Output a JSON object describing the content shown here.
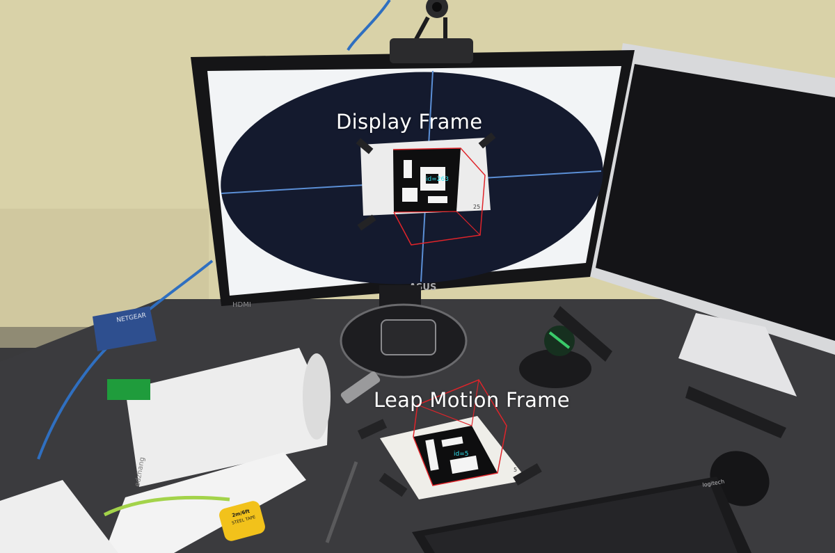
{
  "captions": {
    "display_frame": "Display Frame",
    "leap_motion_frame": "Leap Motion Frame"
  },
  "markers": {
    "display_marker_id": "id=263",
    "display_marker_number": "25",
    "leap_marker_id": "id=5",
    "leap_marker_number": "5"
  },
  "monitor": {
    "brand": "ASUS",
    "port_label": "HDMI"
  },
  "devices": {
    "switch_brand": "NETGEAR",
    "tape_label": "2m/6ft",
    "tape_sublabel": "STEEL TAPE",
    "keyboard_brand": "logitech",
    "paper_name": "edzhang"
  },
  "colors": {
    "wall": "#d9d2a8",
    "desk": "#3b3b3e",
    "monitor_bezel": "#151517",
    "screen_white": "#f2f4f6",
    "ellipse": "#141a2e",
    "axis_line": "#5b8fd6",
    "cube_red": "#e0242a",
    "marker_label": "#2fe3f0",
    "caption_text": "#ffffff"
  }
}
